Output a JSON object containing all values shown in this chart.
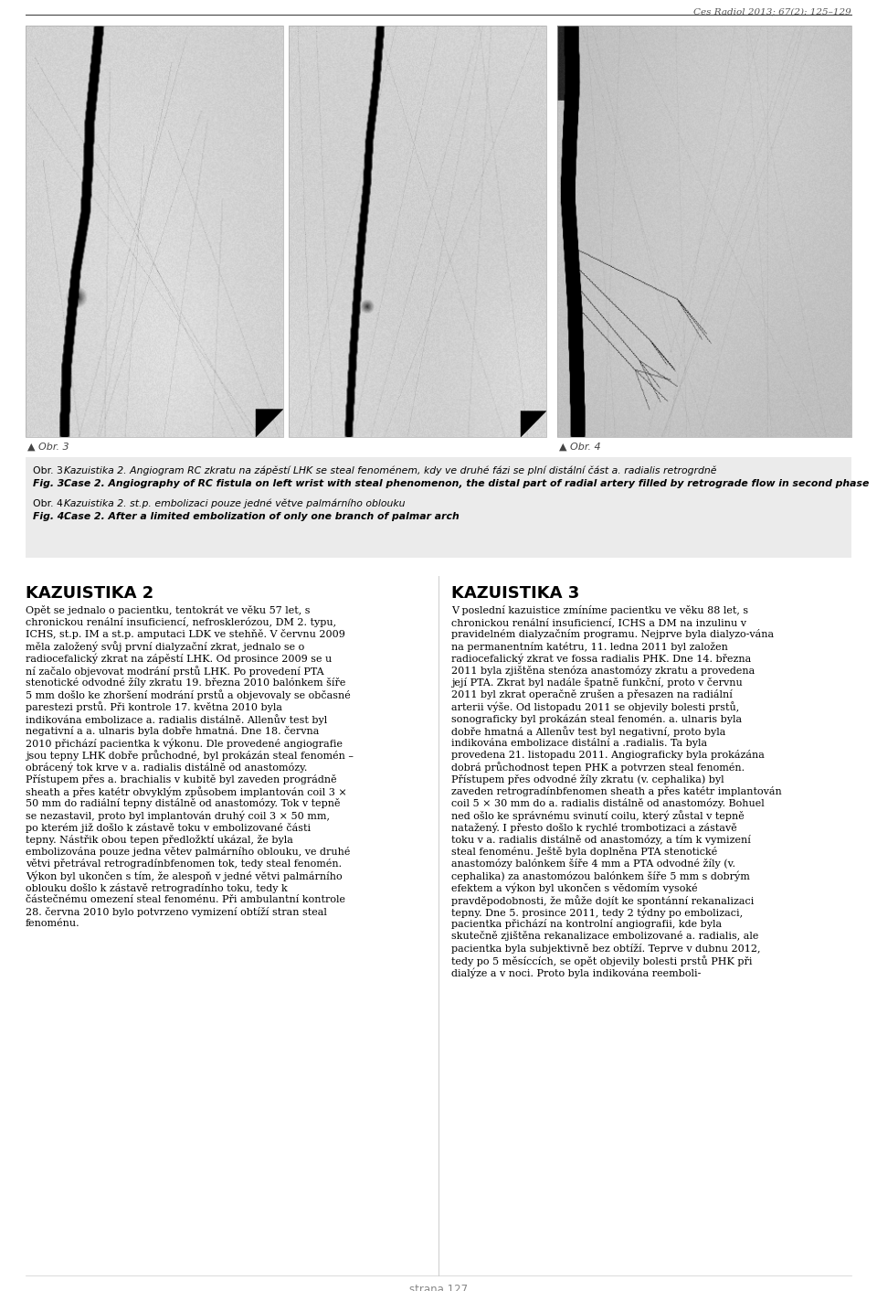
{
  "page_header": "Ces Radiol 2013; 67(2): 125–129",
  "background_color": "#ffffff",
  "caption_bg_color": "#ebebeb",
  "img_label_3": "▲ Obr. 3",
  "img_label_4": "▲ Obr. 4",
  "cap1_prefix_cz": "Obr. 3. ",
  "cap1_italic_cz": "Kazuistika 2. Angiogram RC zkratu na zápěstí LHK se steal fenoménem, kdy ve druhé fázi se plní distální část a. radialis retrogrdně",
  "cap1_prefix_en": "Fig. 3. ",
  "cap1_bold_en": "Case 2. Angiography of RC fistula on left wrist with steal phenomenon, the distal part of radial artery filled by retrograde flow in second phase",
  "cap2_prefix_cz": "Obr. 4. ",
  "cap2_italic_cz": "Kazuistika 2. st.p. embolizaci pouze jedné větve palmárního oblouku",
  "cap2_prefix_en": "Fig. 4. ",
  "cap2_bold_en": "Case 2. After a limited embolization of only one branch of palmar arch",
  "heading1": "KAZUISTIKA 2",
  "heading2": "KAZUISTIKA 3",
  "col1_text": "Opět se jednalo o pacientku, tentokrát ve věku 57 let, s chronickou renální insuficiencí, nefrosklerózou, DM 2. typu, ICHS, st.p. IM a st.p. amputaci LDK ve stehňě. V červnu 2009 měla založený svůj první dialyzační zkrat, jednalo se o radiocefalický zkrat na zápěstí LHK. Od prosince 2009 se u ní začalo objevovat modrání prstů LHK. Po provedení PTA stenotické odvodné žíly zkratu 19. března 2010 balónkem šíře 5 mm došlo ke zhoršení modrání prstů a objevovaly se občasné parestezi prstů. Při kontrole 17. května 2010 byla indikována embolizace a. radialis distálně. Allenův test byl negativní a a. ulnaris byla dobře hmatná. Dne 18. června 2010 přichází pacientka k výkonu. Dle provedené angiografie jsou tepny LHK dobře průchodné, byl prokázán steal fenomén – obrácený tok krve v a. radialis distálně od anastomózy. Přístupem přes a. brachialis v kubitě byl zaveden prográdně sheath a přes katétr obvyklým způsobem implantován coil 3 × 50 mm do radiální tepny distálně od anastomózy. Tok v tepně se nezastavil, proto byl implantován druhý coil 3 × 50 mm, po kterém již došlo k zástavě toku v embolizované části tepny. Nástřik obou tepen předložktí ukázal, že byla embolizována pouze jedna větev palmárního oblouku, ve druhé větvi přetrával retrogradínbfenomen tok, tedy steal fenomén. Výkon byl ukončen s tím, že alespoň v jedné větvi palmárního oblouku došlo k zástavě retrogradínho toku, tedy k částečnému omezení steal fenoménu. Při ambulantní kontrole 28. června 2010 bylo potvrzeno vymizení obtíží stran steal fenoménu.",
  "col2_text": "V poslední kazuistice zmíníme pacientku ve věku 88 let, s chronickou renální insuficiencí, ICHS a DM na inzulinu v pravidelném dialyzačním programu. Nejprve byla dialyzo-vána na permanentním katétru, 11. ledna 2011 byl založen radiocefalický zkrat ve fossa radialis PHK. Dne 14. března 2011 byla zjištěna stenóza anastomózy zkratu a provedena její PTA. Zkrat byl nadále špatně funkční, proto v červnu 2011 byl zkrat operačně zrušen a přesazen na radiální arterii výše. Od listopadu 2011 se objevily bolesti prstů, sonograficky byl prokázán steal fenomén. a. ulnaris byla dobře hmatná a Allenův test byl negativní, proto byla indikována embolizace distální a .radialis. Ta byla provedena 21. listopadu 2011. Angiograficky byla prokázána dobrá průchodnost tepen PHK a potvrzen steal fenomén. Přístupem přes odvodné žíly zkratu (v. cephalika) byl zaveden retrogradínbfenomen sheath a přes katétr implantován coil 5 × 30 mm do a. radialis distálně od anastomózy. Bohuel ned ošlo ke správnému svinutí coilu, který zůstal v tepně natažený. I přesto došlo k rychlé trombotizaci a zástavě toku v a. radialis distálně od anastomózy, a tím k vymizení steal fenoménu. Ještě byla doplněna PTA stenotické anastomózy balónkem šíře 4 mm a PTA odvodné žíly (v. cephalika) za anastomózou balónkem šíře 5 mm s dobrým efektem a výkon byl ukončen s vědomím vysoké pravděpodobnosti, že může dojít ke spontánní rekanalizaci tepny. Dne 5. prosince 2011, tedy 2 týdny po embolizaci, pacientka přichází na kontrolní angiografii, kde byla skutečně zjištěna rekanalizace embolizované a. radialis, ale pacientka byla subjektivně bez obtíží. Teprve v dubnu 2012, tedy po 5 měsíccích, se opět objevily bolesti prstů PHK při dialýze a v noci. Proto byla indikována reemboli-",
  "page_number": "strana 127"
}
